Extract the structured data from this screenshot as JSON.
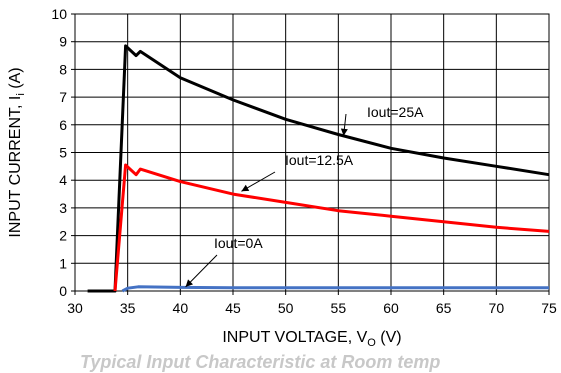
{
  "chart_data": {
    "type": "line",
    "xlabel": "INPUT VOLTAGE, V",
    "xlabel_sub": "O",
    "xlabel_suffix": " (V)",
    "ylabel": "INPUT CURRENT, I",
    "ylabel_sub": "i",
    "ylabel_suffix": " (A)",
    "xlim": [
      30,
      75
    ],
    "ylim": [
      0,
      10
    ],
    "xticks": [
      30,
      35,
      40,
      45,
      50,
      55,
      60,
      65,
      70,
      75
    ],
    "yticks": [
      0,
      1,
      2,
      3,
      4,
      5,
      6,
      7,
      8,
      9,
      10
    ],
    "grid": true,
    "series": [
      {
        "name": "Iout=25A",
        "color": "#000000",
        "points": [
          [
            31.2,
            0
          ],
          [
            33.8,
            0
          ],
          [
            34.8,
            8.85
          ],
          [
            35.8,
            8.5
          ],
          [
            36.2,
            8.65
          ],
          [
            40,
            7.7
          ],
          [
            45,
            6.9
          ],
          [
            50,
            6.2
          ],
          [
            55,
            5.65
          ],
          [
            60,
            5.15
          ],
          [
            65,
            4.8
          ],
          [
            70,
            4.5
          ],
          [
            75,
            4.2
          ]
        ]
      },
      {
        "name": "Iout=12.5A",
        "color": "#ff0000",
        "points": [
          [
            33.8,
            0
          ],
          [
            34.8,
            4.55
          ],
          [
            35.8,
            4.2
          ],
          [
            36.2,
            4.4
          ],
          [
            40,
            3.95
          ],
          [
            45,
            3.5
          ],
          [
            50,
            3.2
          ],
          [
            55,
            2.9
          ],
          [
            60,
            2.7
          ],
          [
            65,
            2.5
          ],
          [
            70,
            2.3
          ],
          [
            75,
            2.15
          ]
        ]
      },
      {
        "name": "Iout=0A",
        "color": "#4472c4",
        "points": [
          [
            34.5,
            0
          ],
          [
            35,
            0.1
          ],
          [
            36,
            0.15
          ],
          [
            40,
            0.13
          ],
          [
            45,
            0.12
          ],
          [
            50,
            0.12
          ],
          [
            55,
            0.12
          ],
          [
            60,
            0.12
          ],
          [
            65,
            0.12
          ],
          [
            70,
            0.12
          ],
          [
            75,
            0.12
          ]
        ]
      }
    ],
    "annotations": [
      {
        "label": "Iout=25A",
        "series": "Iout=25A",
        "arrow_to": [
          55.5,
          5.6
        ]
      },
      {
        "label": "Iout=12.5A",
        "series": "Iout=12.5A",
        "arrow_to": [
          45.8,
          3.6
        ]
      },
      {
        "label": "Iout=0A",
        "series": "Iout=0A",
        "arrow_to": [
          40.5,
          0.15
        ]
      }
    ]
  },
  "footer": {
    "text": "Typical Input Characteristic at Room temp"
  }
}
